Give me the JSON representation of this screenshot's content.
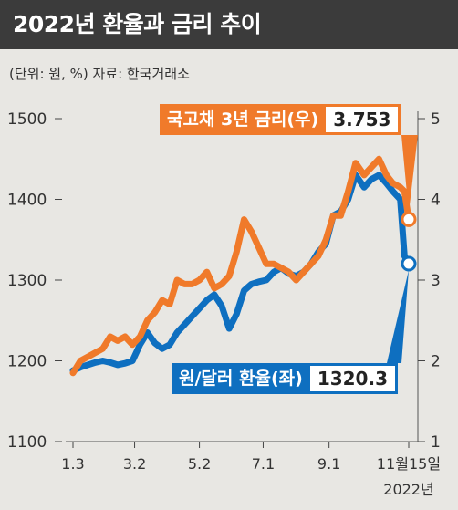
{
  "title": "2022년 환율과 금리 추이",
  "unit_note": "(단위: 원, %)  자료: 한국거래소",
  "callouts": {
    "rate": {
      "label": "국고채 3년 금리(우)",
      "value": "3.753"
    },
    "fx": {
      "label": "원/달러 환율(좌)",
      "value": "1320.3"
    }
  },
  "colors": {
    "rate": "#f07a2a",
    "fx": "#0e6fc0",
    "background": "#e8e7e3",
    "title_bg": "#3b3b3b"
  },
  "chart_data": {
    "type": "line",
    "x_tick_labels": [
      "1.3",
      "3.2",
      "5.2",
      "7.1",
      "9.1",
      "11월15일"
    ],
    "x_axis_note": "2022년",
    "left_axis": {
      "ylim": [
        1100,
        1500
      ],
      "ticks": [
        1100,
        1200,
        1300,
        1400,
        1500
      ]
    },
    "right_axis": {
      "ylim": [
        1,
        5
      ],
      "ticks": [
        1,
        2,
        3,
        4,
        5
      ]
    },
    "series": [
      {
        "name": "국고채 3년 금리(우)",
        "axis": "right",
        "x": [
          "2022-01-03",
          "2022-01-10",
          "2022-01-17",
          "2022-01-24",
          "2022-01-31",
          "2022-02-07",
          "2022-02-14",
          "2022-02-21",
          "2022-02-28",
          "2022-03-07",
          "2022-03-14",
          "2022-03-21",
          "2022-03-28",
          "2022-04-04",
          "2022-04-11",
          "2022-04-18",
          "2022-04-25",
          "2022-05-02",
          "2022-05-09",
          "2022-05-16",
          "2022-05-23",
          "2022-05-30",
          "2022-06-06",
          "2022-06-13",
          "2022-06-20",
          "2022-06-27",
          "2022-07-04",
          "2022-07-11",
          "2022-07-18",
          "2022-07-25",
          "2022-08-01",
          "2022-08-08",
          "2022-08-15",
          "2022-08-22",
          "2022-08-29",
          "2022-09-05",
          "2022-09-12",
          "2022-09-19",
          "2022-09-26",
          "2022-10-04",
          "2022-10-11",
          "2022-10-18",
          "2022-10-25",
          "2022-10-31",
          "2022-11-07",
          "2022-11-11",
          "2022-11-15"
        ],
        "values": [
          1.85,
          2.0,
          2.05,
          2.1,
          2.15,
          2.3,
          2.25,
          2.3,
          2.2,
          2.3,
          2.5,
          2.6,
          2.75,
          2.7,
          3.0,
          2.95,
          2.95,
          3.0,
          3.1,
          2.9,
          2.95,
          3.05,
          3.35,
          3.75,
          3.6,
          3.4,
          3.2,
          3.2,
          3.15,
          3.1,
          3.0,
          3.1,
          3.2,
          3.3,
          3.5,
          3.8,
          3.8,
          4.1,
          4.45,
          4.3,
          4.4,
          4.5,
          4.3,
          4.2,
          4.15,
          4.1,
          3.753
        ]
      },
      {
        "name": "원/달러 환율(좌)",
        "axis": "left",
        "x": [
          "2022-01-03",
          "2022-01-10",
          "2022-01-17",
          "2022-01-24",
          "2022-01-31",
          "2022-02-07",
          "2022-02-14",
          "2022-02-21",
          "2022-02-28",
          "2022-03-07",
          "2022-03-14",
          "2022-03-21",
          "2022-03-28",
          "2022-04-04",
          "2022-04-11",
          "2022-04-18",
          "2022-04-25",
          "2022-05-02",
          "2022-05-09",
          "2022-05-16",
          "2022-05-23",
          "2022-05-30",
          "2022-06-06",
          "2022-06-13",
          "2022-06-20",
          "2022-06-27",
          "2022-07-04",
          "2022-07-11",
          "2022-07-18",
          "2022-07-25",
          "2022-08-01",
          "2022-08-08",
          "2022-08-15",
          "2022-08-22",
          "2022-08-29",
          "2022-09-05",
          "2022-09-12",
          "2022-09-19",
          "2022-09-26",
          "2022-10-04",
          "2022-10-11",
          "2022-10-18",
          "2022-10-25",
          "2022-10-31",
          "2022-11-07",
          "2022-11-11",
          "2022-11-15"
        ],
        "values": [
          1188,
          1192,
          1195,
          1198,
          1200,
          1198,
          1195,
          1197,
          1200,
          1220,
          1235,
          1222,
          1215,
          1220,
          1235,
          1245,
          1255,
          1265,
          1275,
          1282,
          1268,
          1240,
          1258,
          1287,
          1295,
          1298,
          1300,
          1310,
          1315,
          1308,
          1305,
          1310,
          1320,
          1335,
          1345,
          1380,
          1385,
          1400,
          1430,
          1415,
          1425,
          1430,
          1420,
          1410,
          1400,
          1330,
          1320.3
        ]
      }
    ]
  }
}
